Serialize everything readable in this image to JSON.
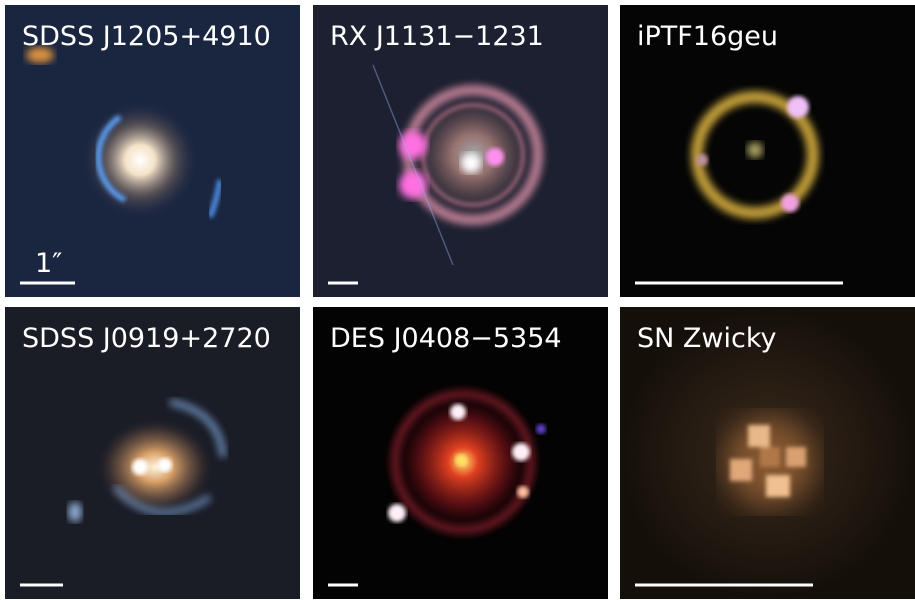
{
  "panels": [
    {
      "label": "SDSS J1205+4910",
      "scale_label": "1″"
    },
    {
      "label": "RX J1131−1231"
    },
    {
      "label": "iPTF16geu"
    },
    {
      "label": "SDSS J0919+2720"
    },
    {
      "label": "DES J0408−5354"
    },
    {
      "label": "SN Zwicky"
    }
  ]
}
